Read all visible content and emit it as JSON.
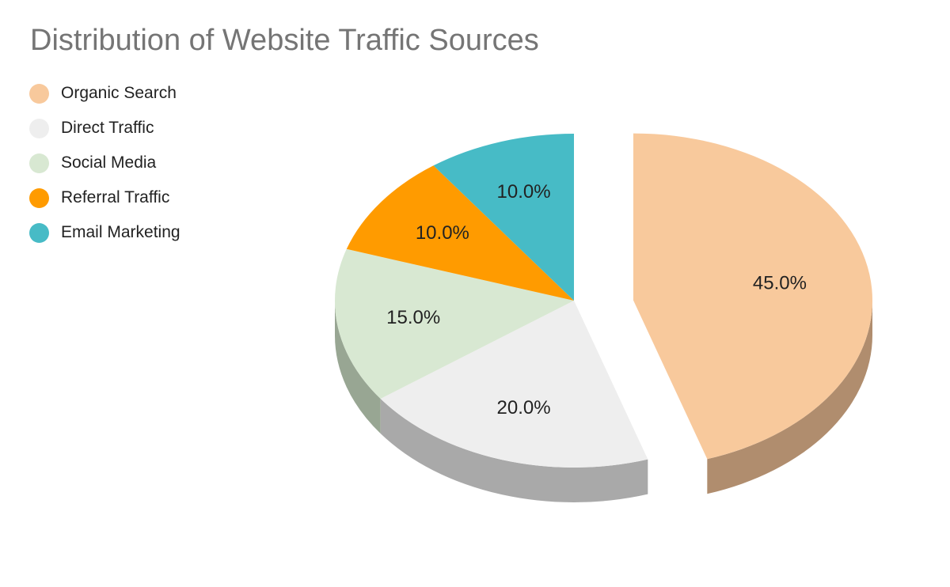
{
  "chart_data": {
    "type": "pie",
    "title": "Distribution of Website Traffic Sources",
    "legend_position": "top-left",
    "pie_style": "3d-exploded",
    "slices": [
      {
        "label": "Organic Search",
        "value": 45.0,
        "display": "45.0%",
        "color": "#F8C99C",
        "side_color": "#B08D6E",
        "exploded": true
      },
      {
        "label": "Direct Traffic",
        "value": 20.0,
        "display": "20.0%",
        "color": "#EEEEEE",
        "side_color": "#A9A9A9",
        "exploded": false
      },
      {
        "label": "Social Media",
        "value": 15.0,
        "display": "15.0%",
        "color": "#D8E8D2",
        "side_color": "#98A693",
        "exploded": false
      },
      {
        "label": "Referral Traffic",
        "value": 10.0,
        "display": "10.0%",
        "color": "#FF9B00",
        "side_color": "#B36D00",
        "exploded": false
      },
      {
        "label": "Email Marketing",
        "value": 10.0,
        "display": "10.0%",
        "color": "#47BBC6",
        "side_color": "#32838A",
        "exploded": false
      }
    ]
  }
}
